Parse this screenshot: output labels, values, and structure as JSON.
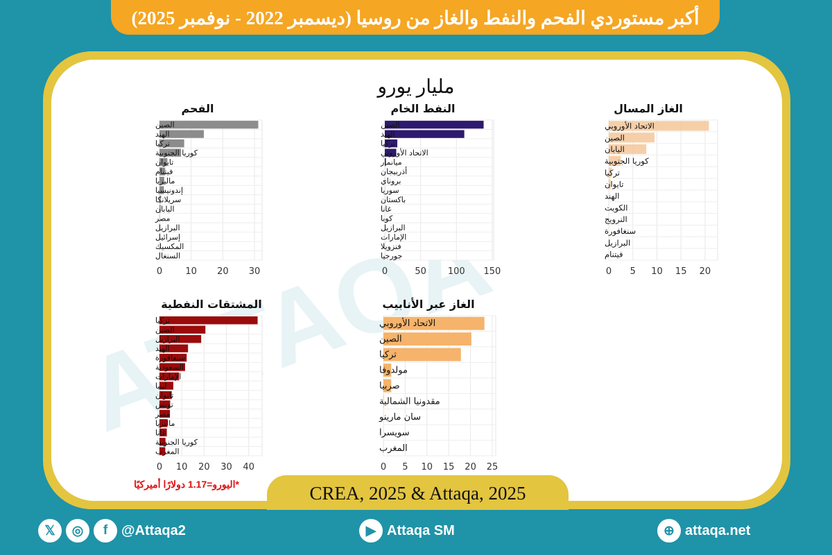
{
  "header": {
    "title": "أكبر مستوردي الفحم والنفط والغاز من روسيا (ديسمبر 2022 - نوفمبر 2025)"
  },
  "unit_label": "مليار يورو",
  "note": "*اليورو=1.17 دولارًا أميركيًا",
  "source": "CREA, 2025 & Attaqa, 2025",
  "watermark": "الطاقة ATTAQA",
  "footer": {
    "social_handle": "@Attaqa2",
    "youtube": "Attaqa SM",
    "website": "attaqa.net",
    "icons": [
      "x-icon",
      "instagram-icon",
      "facebook-icon",
      "youtube-icon",
      "globe-icon"
    ]
  },
  "chart_data": [
    {
      "id": "coal",
      "type": "bar",
      "orientation": "horizontal",
      "title": "الفحم",
      "color": "#8c8c8c",
      "xlim": [
        0,
        32.4
      ],
      "ticks": [
        0,
        10,
        20,
        30
      ],
      "grid": true,
      "categories": [
        "الصين",
        "الهند",
        "تركيا",
        "كوريا الجنوبية",
        "تايوان",
        "فيتنام",
        "ماليزيا",
        "إندونيسيا",
        "سريلانكا",
        "اليابان",
        "مصر",
        "البرازيل",
        "إسرائيل",
        "المكسيك",
        "السنغال"
      ],
      "values": [
        31.2,
        14.0,
        7.8,
        6.8,
        2.5,
        1.8,
        1.5,
        1.4,
        0.4,
        0.4,
        0.1,
        0.1,
        0.05,
        0.05,
        0.05
      ]
    },
    {
      "id": "crude",
      "type": "bar",
      "orientation": "horizontal",
      "title": "النفط الخام",
      "color": "#2e1a6e",
      "xlim": [
        0,
        152
      ],
      "ticks": [
        0,
        50,
        100,
        150
      ],
      "grid": true,
      "categories": [
        "الصين",
        "الهند",
        "تركيا",
        "الاتحاد الأوروبي",
        "ميانمار",
        "أذربيجان",
        "بروناي",
        "سوريا",
        "باكستان",
        "غانا",
        "كوبا",
        "البرازيل",
        "الإمارات",
        "فنزويلا",
        "جورجيا"
      ],
      "values": [
        138,
        111,
        17.5,
        16,
        1.5,
        0.1,
        0.1,
        0.1,
        0.1,
        0.05,
        0.05,
        0.05,
        0.05,
        0.05,
        0.05
      ]
    },
    {
      "id": "lng",
      "type": "bar",
      "orientation": "horizontal",
      "title": "الغاز المسال",
      "color": "#f5c799",
      "xlim": [
        0,
        22.6
      ],
      "ticks": [
        0,
        5,
        10,
        15,
        20
      ],
      "grid": true,
      "categories": [
        "الاتحاد الأوروبي",
        "الصين",
        "اليابان",
        "كوريا الجنوبية",
        "تركيا",
        "تايوان",
        "الهند",
        "الكويت",
        "النرويج",
        "سنغافورة",
        "البرازيل",
        "فيتنام"
      ],
      "values": [
        20.8,
        9.5,
        7.8,
        2.5,
        0.6,
        0.4,
        0.05,
        0.05,
        0.05,
        0.05,
        0.05,
        0.05
      ]
    },
    {
      "id": "products",
      "type": "bar",
      "orientation": "horizontal",
      "title": "المشتقات النفطية",
      "color": "#9b0b0b",
      "xlim": [
        0,
        46
      ],
      "ticks": [
        0,
        10,
        20,
        30,
        40
      ],
      "grid": true,
      "categories": [
        "تركيا",
        "الصين",
        "البرازيل",
        "الهند",
        "سنغافورة",
        "السعودية",
        "الإمارات",
        "ليبيا",
        "تايوان",
        "تونس",
        "مصر",
        "ماليزيا",
        "غانا",
        "كوريا الجنوبية",
        "المغرب"
      ],
      "values": [
        44,
        20.6,
        18.7,
        12.8,
        12.2,
        11.5,
        8.8,
        6.2,
        5.5,
        4.8,
        4.7,
        3.6,
        3.3,
        2.7,
        2.6
      ]
    },
    {
      "id": "pipeline",
      "type": "bar",
      "orientation": "horizontal",
      "title": "الغاز عبر الأنابيب",
      "color": "#f5b36b",
      "xlim": [
        0,
        25.8
      ],
      "ticks": [
        0,
        5,
        10,
        15,
        20,
        25
      ],
      "grid": true,
      "categories": [
        "الاتحاد الأوروبي",
        "الصين",
        "تركيا",
        "مولدوفا",
        "صربيا",
        "مقدونيا الشمالية",
        "سان مارينو",
        "سويسرا",
        "المغرب"
      ],
      "values": [
        23.2,
        20.2,
        17.8,
        1.8,
        1.8,
        0.1,
        0.02,
        0.02,
        0.02
      ]
    }
  ]
}
